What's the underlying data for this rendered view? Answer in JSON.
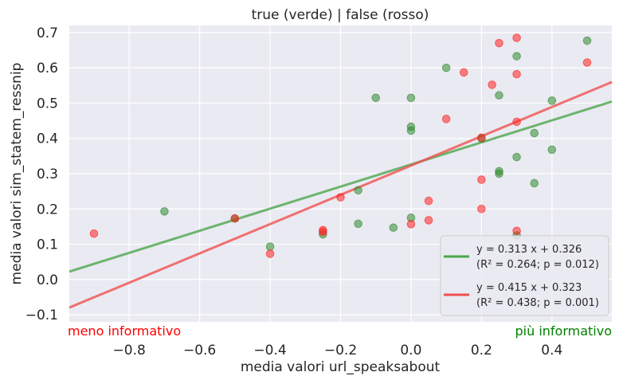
{
  "chart_data": {
    "type": "scatter",
    "title": "true (verde) | false (rosso)",
    "xlabel": "media valori url_speaksabout",
    "ylabel": "media valori sim_statem_ressnip",
    "xlim": [
      -0.97,
      0.57
    ],
    "ylim": [
      -0.12,
      0.72
    ],
    "xticks": [
      -0.8,
      -0.6,
      -0.4,
      -0.2,
      0.0,
      0.2,
      0.4
    ],
    "xtick_labels": [
      "−0.8",
      "−0.6",
      "−0.4",
      "−0.2",
      "0.0",
      "0.2",
      "0.4"
    ],
    "yticks": [
      -0.1,
      0.0,
      0.1,
      0.2,
      0.3,
      0.4,
      0.5,
      0.6,
      0.7
    ],
    "ytick_labels": [
      "−0.1",
      "0.0",
      "0.1",
      "0.2",
      "0.3",
      "0.4",
      "0.5",
      "0.6",
      "0.7"
    ],
    "grid": true,
    "legend_position": "lower-right",
    "series": [
      {
        "key": "true",
        "color": "#2e8b2e",
        "line_color": "#4ca64c",
        "points": [
          [
            -0.7,
            0.193
          ],
          [
            -0.5,
            0.173
          ],
          [
            -0.4,
            0.093
          ],
          [
            -0.25,
            0.128
          ],
          [
            -0.15,
            0.253
          ],
          [
            -0.15,
            0.158
          ],
          [
            -0.1,
            0.515
          ],
          [
            -0.05,
            0.147
          ],
          [
            0.0,
            0.515
          ],
          [
            0.0,
            0.433
          ],
          [
            0.0,
            0.422
          ],
          [
            0.0,
            0.175
          ],
          [
            0.1,
            0.6
          ],
          [
            0.2,
            0.4
          ],
          [
            0.25,
            0.522
          ],
          [
            0.25,
            0.307
          ],
          [
            0.25,
            0.3
          ],
          [
            0.3,
            0.633
          ],
          [
            0.3,
            0.347
          ],
          [
            0.3,
            0.125
          ],
          [
            0.35,
            0.415
          ],
          [
            0.35,
            0.273
          ],
          [
            0.4,
            0.507
          ],
          [
            0.4,
            0.368
          ],
          [
            0.5,
            0.677
          ]
        ],
        "fit": {
          "slope": 0.313,
          "intercept": 0.326
        }
      },
      {
        "key": "false",
        "color": "#ff2020",
        "line_color": "#f05050",
        "points": [
          [
            -0.9,
            0.13
          ],
          [
            -0.5,
            0.173
          ],
          [
            -0.4,
            0.073
          ],
          [
            -0.25,
            0.14
          ],
          [
            -0.25,
            0.135
          ],
          [
            -0.2,
            0.233
          ],
          [
            0.0,
            0.157
          ],
          [
            0.05,
            0.223
          ],
          [
            0.05,
            0.168
          ],
          [
            0.1,
            0.455
          ],
          [
            0.15,
            0.587
          ],
          [
            0.2,
            0.402
          ],
          [
            0.2,
            0.283
          ],
          [
            0.2,
            0.2
          ],
          [
            0.23,
            0.552
          ],
          [
            0.25,
            0.67
          ],
          [
            0.3,
            0.685
          ],
          [
            0.3,
            0.582
          ],
          [
            0.3,
            0.447
          ],
          [
            0.3,
            0.138
          ],
          [
            0.5,
            0.615
          ]
        ],
        "fit": {
          "slope": 0.415,
          "intercept": 0.323
        }
      }
    ],
    "legend": [
      {
        "line1": "y = 0.313 x + 0.326",
        "line2": "(R² = 0.264; p = 0.012)"
      },
      {
        "line1": "y = 0.415 x + 0.323",
        "line2": "(R² = 0.438; p = 0.001)"
      }
    ],
    "annotations": {
      "left": {
        "text": "meno informativo",
        "color": "#ff0000"
      },
      "right": {
        "text": "più informativo",
        "color": "#008000"
      }
    }
  }
}
